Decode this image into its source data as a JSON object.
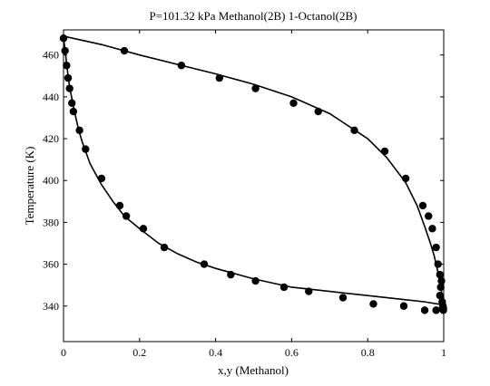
{
  "chart_data": {
    "type": "scatter",
    "title": "P=101.32 kPa  Methanol(2B) 1-Octanol(2B)",
    "xlabel": "x,y (Methanol)",
    "ylabel": "Temperature (K)",
    "xlim": [
      0,
      1
    ],
    "ylim": [
      323,
      472
    ],
    "xticks": [
      0,
      0.2,
      0.4,
      0.6,
      0.8,
      1
    ],
    "xtick_labels": [
      "0",
      "0.2",
      "0.4",
      "0.6",
      "0.8",
      "1"
    ],
    "yticks": [
      340,
      360,
      380,
      400,
      420,
      440,
      460
    ],
    "ytick_labels": [
      "340",
      "360",
      "380",
      "400",
      "420",
      "440",
      "460"
    ],
    "grid": false,
    "legend": "none",
    "series": [
      {
        "kind": "line",
        "role": "bubble curve (liquid)",
        "x": [
          0.001,
          0.005,
          0.01,
          0.015,
          0.02,
          0.03,
          0.04,
          0.05,
          0.07,
          0.1,
          0.13,
          0.16,
          0.2,
          0.25,
          0.3,
          0.35,
          0.4,
          0.5,
          0.6,
          0.7,
          0.8,
          0.9,
          0.95,
          1.0
        ],
        "y": [
          467,
          461,
          453,
          446,
          441,
          432,
          424,
          418,
          408,
          398,
          390,
          383,
          377,
          370,
          365,
          361,
          358,
          353,
          349,
          347,
          345,
          343,
          342,
          340.5
        ]
      },
      {
        "kind": "line",
        "role": "dew curve (vapor)",
        "x": [
          0.0,
          0.1,
          0.2,
          0.3,
          0.4,
          0.5,
          0.6,
          0.7,
          0.8,
          0.85,
          0.9,
          0.93,
          0.95,
          0.965,
          0.975,
          0.985,
          0.99,
          0.995,
          1.0
        ],
        "y": [
          469,
          465,
          460,
          455.5,
          451,
          446,
          440,
          432,
          420,
          411,
          399,
          388,
          378,
          370,
          364,
          356,
          351,
          346,
          340.5
        ]
      },
      {
        "kind": "points",
        "role": "experimental data",
        "x": [
          0.0,
          0.004,
          0.008,
          0.012,
          0.016,
          0.022,
          0.026,
          0.042,
          0.058,
          0.1,
          0.148,
          0.165,
          0.21,
          0.265,
          0.37,
          0.44,
          0.505,
          0.58,
          0.645,
          0.735,
          0.815,
          0.895,
          0.95,
          0.98,
          0.99,
          0.992,
          0.994,
          0.996,
          0.997,
          0.998,
          0.999,
          0.999,
          0.16,
          0.31,
          0.41,
          0.505,
          0.605,
          0.67,
          0.765,
          0.845,
          0.9,
          0.945,
          0.96,
          0.97,
          0.98,
          0.985,
          0.99
        ],
        "y": [
          468,
          462,
          455,
          449,
          444,
          437,
          433,
          424,
          415,
          401,
          388,
          383,
          377,
          368,
          360,
          355,
          352,
          349,
          347,
          344,
          341,
          340,
          338,
          338,
          345,
          349,
          352,
          342,
          339,
          340,
          338,
          339,
          462,
          455,
          449,
          444,
          437,
          433,
          424,
          414,
          401,
          388,
          383,
          377,
          368,
          360,
          355
        ]
      }
    ]
  }
}
